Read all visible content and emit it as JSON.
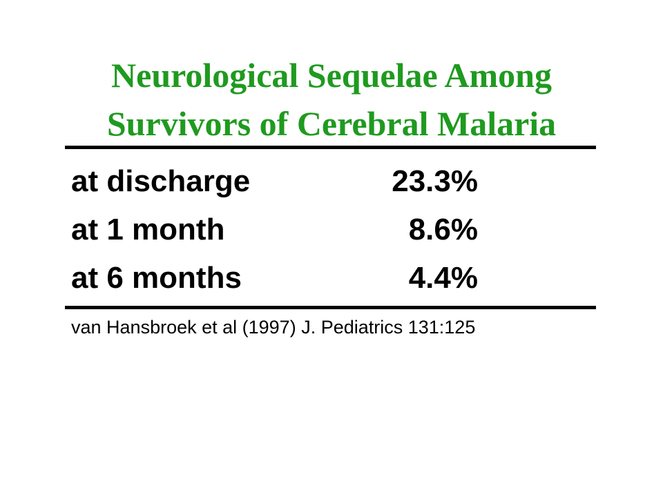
{
  "slide": {
    "title_line1": "Neurological Sequelae Among",
    "title_line2": "Survivors of Cerebral Malaria",
    "title_color": "#1f9a1f",
    "rows": [
      {
        "label": "at discharge",
        "value": "23.3%"
      },
      {
        "label": "at 1 month",
        "value": "8.6%"
      },
      {
        "label": "at 6 months",
        "value": "4.4%"
      }
    ],
    "citation": "van Hansbroek et al (1997) J. Pediatrics 131:125"
  }
}
